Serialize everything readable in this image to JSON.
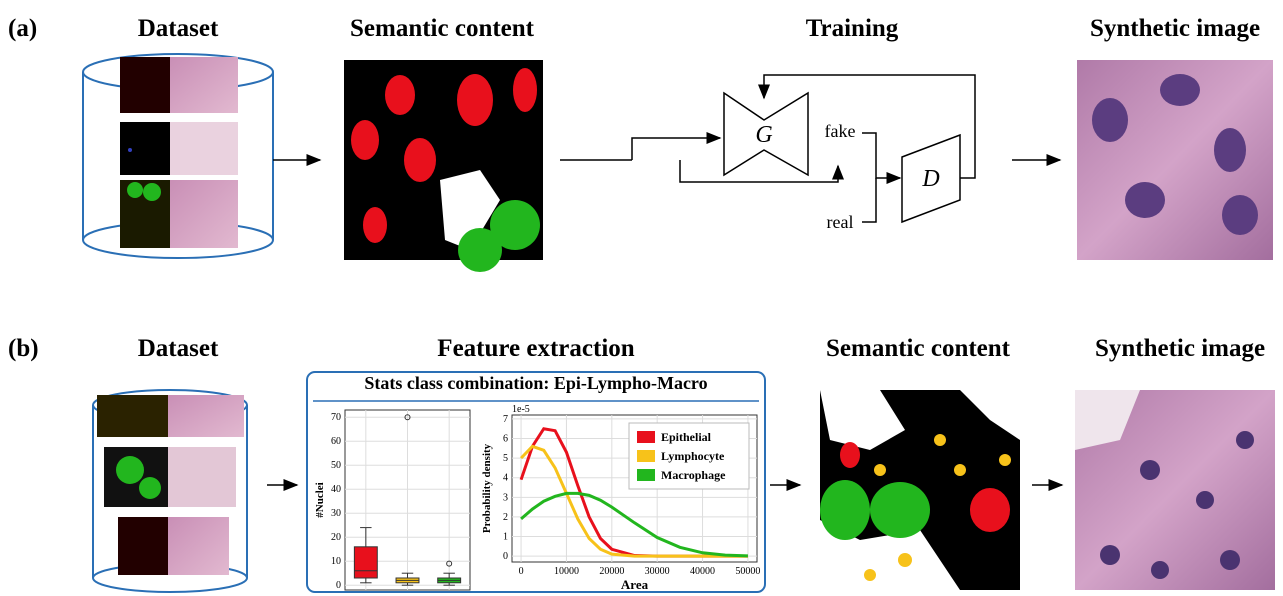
{
  "panel_a": {
    "label": "(a)",
    "dataset": "Dataset",
    "semantic": "Semantic content",
    "training": "Training",
    "synthetic": "Synthetic image",
    "generator": "G",
    "discriminator": "D",
    "fake": "fake",
    "real": "real"
  },
  "panel_b": {
    "label": "(b)",
    "dataset": "Dataset",
    "feature": "Feature extraction",
    "stats_title": "Stats class combination: Epi-Lympho-Macro",
    "semantic": "Semantic content",
    "synthetic": "Synthetic image"
  },
  "chart_data": [
    {
      "type": "box",
      "ylabel": "#Nuclei",
      "colors": [
        "#e8101c",
        "#f7c21a",
        "#22b61e"
      ],
      "boxes": [
        {
          "whislo": 1,
          "q1": 3,
          "med": 6,
          "q3": 16,
          "whishi": 24,
          "fliers": []
        },
        {
          "whislo": 0,
          "q1": 1,
          "med": 2,
          "q3": 3,
          "whishi": 5,
          "fliers": [
            70
          ]
        },
        {
          "whislo": 0,
          "q1": 1,
          "med": 2,
          "q3": 3,
          "whishi": 5,
          "fliers": [
            9
          ]
        }
      ],
      "ylim": [
        -2,
        73
      ],
      "yticks": [
        0,
        10,
        20,
        30,
        40,
        50,
        60,
        70
      ],
      "grid": true
    },
    {
      "type": "line",
      "xlabel": "Area",
      "ylabel": "Probability density",
      "offset_label": "1e-5",
      "x": [
        0,
        2500,
        5000,
        7500,
        10000,
        12500,
        15000,
        17500,
        20000,
        25000,
        30000,
        35000,
        40000,
        45000,
        50000
      ],
      "series": [
        {
          "name": "Epithelial",
          "color": "#e8101c",
          "values": [
            3.9,
            5.6,
            6.5,
            6.4,
            5.3,
            3.6,
            2.0,
            0.9,
            0.35,
            0.03,
            0,
            0,
            0,
            0,
            0
          ]
        },
        {
          "name": "Lymphocyte",
          "color": "#f7c21a",
          "values": [
            5.0,
            5.6,
            5.4,
            4.5,
            3.2,
            1.9,
            0.9,
            0.35,
            0.1,
            0,
            0,
            0,
            0,
            0,
            0
          ]
        },
        {
          "name": "Macrophage",
          "color": "#22b61e",
          "values": [
            1.9,
            2.4,
            2.8,
            3.05,
            3.2,
            3.2,
            3.1,
            2.85,
            2.5,
            1.7,
            0.95,
            0.45,
            0.17,
            0.05,
            0.01
          ]
        }
      ],
      "xlim": [
        -2000,
        52000
      ],
      "ylim": [
        -0.3,
        7.2
      ],
      "xticks": [
        0,
        10000,
        20000,
        30000,
        40000,
        50000
      ],
      "yticks": [
        0,
        1,
        2,
        3,
        4,
        5,
        6,
        7
      ],
      "grid": true,
      "legend": "upper right"
    }
  ]
}
